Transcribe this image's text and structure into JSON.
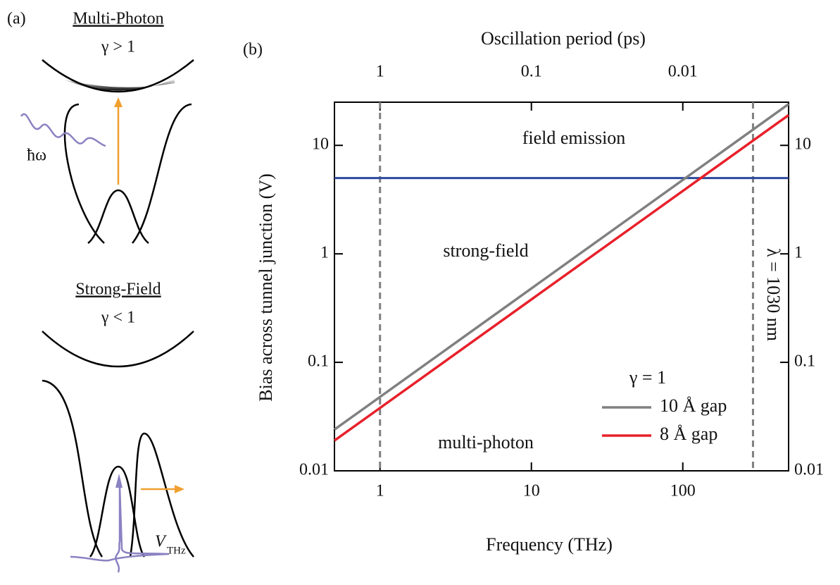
{
  "panel_a": {
    "label": "(a)",
    "top_title": "Multi-Photon",
    "top_condition": "γ > 1",
    "photon": "ħω",
    "bottom_title": "Strong-Field",
    "bottom_condition": "γ < 1",
    "pulse_symbol": "V",
    "pulse_subscript": "THz"
  },
  "chart_data": {
    "type": "line",
    "panel_label": "(b)",
    "x_label": "Frequency (THz)",
    "y_label": "Bias across tunnel  junction (V)",
    "x2_label": "Oscillation period (ps)",
    "log_x": true,
    "log_y": true,
    "xlim": [
      0.5,
      500
    ],
    "xticks": [
      1,
      10,
      100
    ],
    "ylim": [
      0.01,
      25
    ],
    "yticks": [
      0.01,
      0.1,
      1,
      10
    ],
    "x2lim": [
      2,
      0.002
    ],
    "x2ticks": [
      1,
      0.1,
      0.01
    ],
    "legend_title": "γ = 1",
    "legend_position": "lower right",
    "x": [
      0.5,
      500
    ],
    "series": [
      {
        "name": "10 Å gap",
        "color": "#808080",
        "values": [
          0.024,
          24
        ]
      },
      {
        "name": "8 Å gap",
        "color": "#e8202a",
        "values": [
          0.019,
          19
        ]
      }
    ],
    "hlines": [
      {
        "value": 5,
        "color": "#2b4a9c"
      }
    ],
    "vlines": [
      {
        "value": 1,
        "color": "#808080"
      },
      {
        "value": 291,
        "color": "#808080"
      }
    ],
    "annotations": [
      "field emission",
      "strong-field",
      "multi-photon",
      "λ = 1030 nm"
    ]
  }
}
